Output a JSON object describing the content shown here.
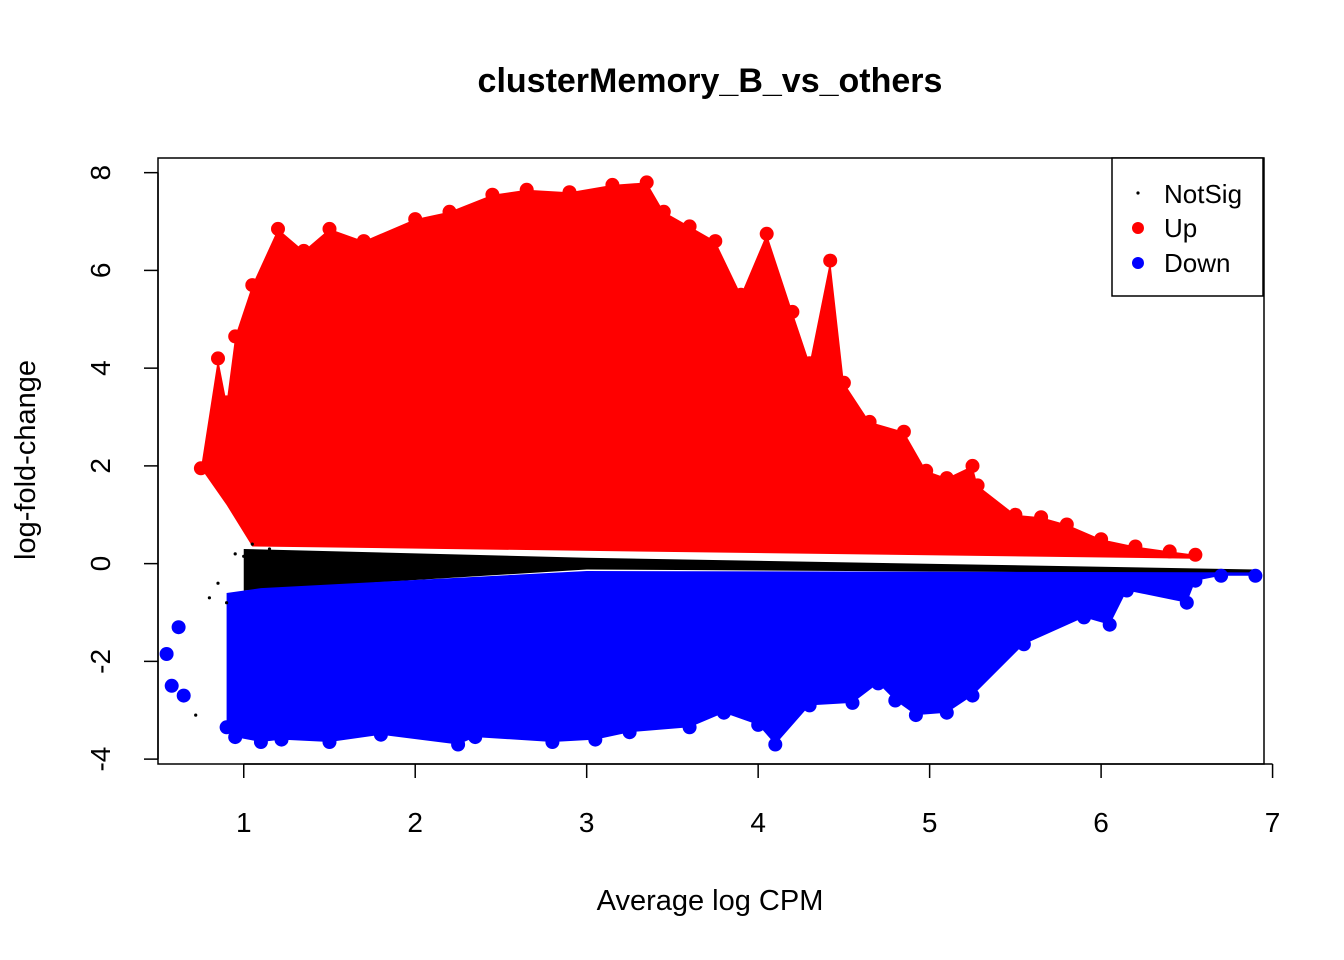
{
  "chart_data": {
    "type": "scatter",
    "title": "clusterMemory_B_vs_others",
    "xlabel": "Average log CPM",
    "ylabel": "log-fold-change",
    "xlim": [
      0.5,
      6.95
    ],
    "ylim": [
      -4.1,
      8.3
    ],
    "x_ticks": [
      1,
      2,
      3,
      4,
      5,
      6,
      7
    ],
    "y_ticks": [
      -4,
      -2,
      0,
      2,
      4,
      6,
      8
    ],
    "grid": false,
    "legend": {
      "position": "top-right",
      "entries": [
        {
          "label": "NotSig",
          "color": "#000000"
        },
        {
          "label": "Up",
          "color": "#ff0000"
        },
        {
          "label": "Down",
          "color": "#0000ff"
        }
      ]
    },
    "series": [
      {
        "name": "Up",
        "color": "#ff0000",
        "x": [
          0.75,
          0.85,
          0.9,
          0.95,
          1.05,
          1.2,
          1.35,
          1.5,
          1.7,
          2.0,
          2.2,
          2.45,
          2.65,
          2.9,
          3.15,
          3.35,
          3.45,
          3.6,
          3.75,
          3.9,
          4.05,
          4.2,
          4.3,
          4.42,
          4.5,
          4.65,
          4.85,
          4.98,
          5.1,
          5.25,
          5.28,
          5.5,
          5.65,
          5.8,
          6.0,
          6.2,
          6.4,
          6.55
        ],
        "y": [
          1.95,
          4.2,
          3.3,
          4.65,
          5.7,
          6.85,
          6.4,
          6.85,
          6.6,
          7.05,
          7.2,
          7.55,
          7.65,
          7.6,
          7.75,
          7.8,
          7.2,
          6.9,
          6.6,
          5.5,
          6.75,
          5.15,
          4.1,
          6.2,
          3.7,
          2.9,
          2.7,
          1.9,
          1.75,
          2.0,
          1.6,
          1.0,
          0.95,
          0.8,
          0.5,
          0.35,
          0.25,
          0.18
        ]
      },
      {
        "name": "NotSig",
        "color": "#000000",
        "x": [
          0.72,
          0.8,
          0.85,
          0.9,
          0.95,
          1.0,
          1.05,
          1.1,
          1.15,
          1.2,
          1.3,
          1.45
        ],
        "y": [
          -3.1,
          -0.7,
          -0.4,
          -0.8,
          0.2,
          0.15,
          0.4,
          -0.2,
          0.3,
          0.1,
          0.05,
          0.0
        ]
      },
      {
        "name": "Down",
        "color": "#0000ff",
        "x": [
          0.55,
          0.58,
          0.62,
          0.65,
          0.9,
          0.95,
          1.1,
          1.22,
          1.5,
          1.8,
          2.25,
          2.35,
          2.8,
          3.05,
          3.25,
          3.6,
          3.8,
          4.0,
          4.1,
          4.3,
          4.55,
          4.7,
          4.8,
          4.92,
          5.1,
          5.25,
          5.55,
          5.9,
          6.05,
          6.15,
          6.5,
          6.55,
          6.7,
          6.9
        ],
        "y": [
          -1.85,
          -2.5,
          -1.3,
          -2.7,
          -3.35,
          -3.55,
          -3.65,
          -3.6,
          -3.65,
          -3.5,
          -3.7,
          -3.55,
          -3.65,
          -3.6,
          -3.45,
          -3.35,
          -3.05,
          -3.3,
          -3.7,
          -2.9,
          -2.85,
          -2.45,
          -2.8,
          -3.1,
          -3.05,
          -2.7,
          -1.65,
          -1.1,
          -1.25,
          -0.55,
          -0.8,
          -0.35,
          -0.25,
          -0.25
        ]
      }
    ]
  }
}
